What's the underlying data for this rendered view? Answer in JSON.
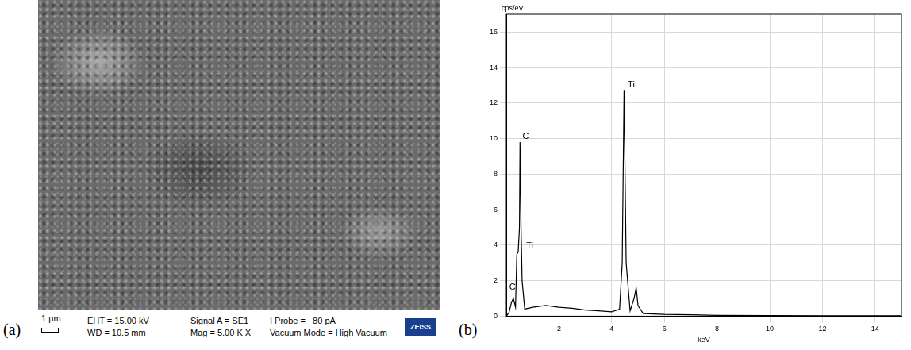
{
  "image_panel": {
    "label": "(a)",
    "scale_bar": "1 µm",
    "info": [
      [
        "EHT = 15.00 kV",
        "WD = 10.5 mm"
      ],
      [
        "Signal A = SE1",
        "Mag = 5.00 K X"
      ],
      [
        "I Probe =   80 pA",
        "Vacuum Mode = High Vacuum"
      ]
    ],
    "logo": "ZEISS"
  },
  "chart_panel_label": "(b)",
  "chart_data": {
    "type": "line",
    "y_label": "cps/eV",
    "x_label": "keV",
    "x": [
      0.0,
      0.1,
      0.2,
      0.27,
      0.35,
      0.4,
      0.45,
      0.5,
      0.52,
      0.56,
      0.6,
      0.7,
      1.0,
      1.5,
      2.0,
      2.5,
      3.0,
      3.5,
      4.0,
      4.3,
      4.4,
      4.47,
      4.55,
      4.7,
      4.85,
      4.93,
      5.0,
      5.2,
      6.0,
      7.0,
      8.0,
      10.0,
      12.0,
      14.0,
      15.0
    ],
    "values": [
      0,
      0.2,
      0.8,
      1.0,
      0.5,
      3.5,
      3.6,
      5.0,
      9.8,
      5.0,
      2.0,
      0.4,
      0.5,
      0.6,
      0.5,
      0.45,
      0.35,
      0.3,
      0.25,
      0.4,
      3.0,
      12.7,
      3.0,
      0.3,
      1.0,
      1.6,
      0.6,
      0.15,
      0.1,
      0.08,
      0.05,
      0.04,
      0.03,
      0.02,
      0.02
    ],
    "color": "#000000",
    "xlim": [
      0,
      15
    ],
    "xticks": [
      2,
      4,
      6,
      8,
      10,
      12,
      14
    ],
    "ylim": [
      0,
      17
    ],
    "yticks": [
      0,
      2,
      4,
      6,
      8,
      10,
      12,
      14,
      16
    ],
    "grid": true,
    "annotations": [
      {
        "text": "C",
        "x": 0.56,
        "y": 9.8
      },
      {
        "text": "Ti",
        "x": 0.7,
        "y": 3.6
      },
      {
        "text": "C",
        "x": 0.05,
        "y": 1.3
      },
      {
        "text": "Ti",
        "x": 4.55,
        "y": 12.7
      }
    ]
  }
}
